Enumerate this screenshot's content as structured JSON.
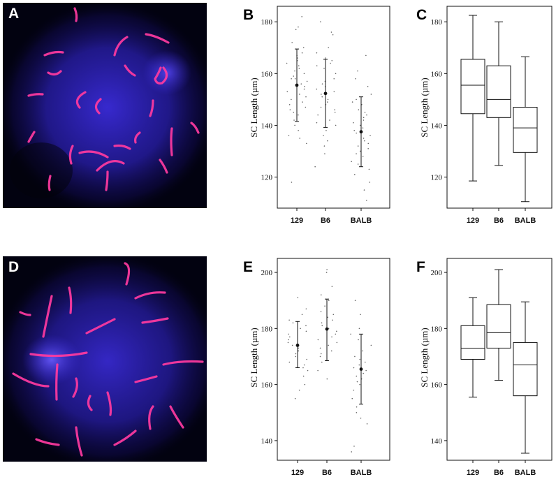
{
  "panels": {
    "A": {
      "letter": "A"
    },
    "D": {
      "letter": "D"
    }
  },
  "chart_data": [
    {
      "panel": "B",
      "type": "scatter",
      "ylabel": "SC Length (µm)",
      "categories": [
        "129",
        "B6",
        "BALB"
      ],
      "ylim": [
        108,
        186
      ],
      "yticks": [
        120,
        140,
        160,
        180
      ],
      "mean": [
        155.5,
        152.3,
        137.5
      ],
      "sd_low": [
        141.5,
        139.2,
        124.0
      ],
      "sd_high": [
        169.5,
        165.5,
        151.0
      ],
      "points": [
        [
          182,
          178,
          177,
          172,
          170,
          168,
          167,
          166,
          165,
          164,
          163,
          162,
          161,
          160,
          159,
          158,
          158,
          157,
          156,
          155,
          154,
          153,
          152,
          151,
          150,
          149,
          148,
          147,
          146,
          145,
          144,
          142,
          140,
          138,
          136,
          135,
          133,
          118
        ],
        [
          180,
          176,
          175,
          170,
          168,
          166,
          165,
          164,
          163,
          162,
          160,
          158,
          157,
          156,
          155,
          154,
          153,
          152,
          151,
          150,
          149,
          148,
          147,
          146,
          145,
          144,
          142,
          141,
          140,
          138,
          136,
          134,
          132,
          129,
          124
        ],
        [
          167,
          161,
          158,
          155,
          152,
          150,
          149,
          148,
          146,
          145,
          144,
          143,
          142,
          141,
          140,
          139,
          138,
          137,
          136,
          135,
          134,
          133,
          132,
          131,
          130,
          129,
          128,
          126,
          125,
          123,
          121,
          118,
          115,
          111
        ]
      ]
    },
    {
      "panel": "C",
      "type": "box",
      "ylabel": "SC Length (µm)",
      "categories": [
        "129",
        "B6",
        "BALB"
      ],
      "ylim": [
        108,
        186
      ],
      "yticks": [
        120,
        140,
        160,
        180
      ],
      "boxes": [
        {
          "min": 118.5,
          "q1": 144.5,
          "median": 155.5,
          "q3": 165.5,
          "max": 182.5
        },
        {
          "min": 124.5,
          "q1": 143.0,
          "median": 150.0,
          "q3": 163.0,
          "max": 180.0
        },
        {
          "min": 110.5,
          "q1": 129.5,
          "median": 139.0,
          "q3": 147.0,
          "max": 166.5
        }
      ]
    },
    {
      "panel": "E",
      "type": "scatter",
      "ylabel": "SC Length (µm)",
      "categories": [
        "129",
        "B6",
        "BALB"
      ],
      "ylim": [
        133,
        205
      ],
      "yticks": [
        140,
        160,
        180,
        200
      ],
      "mean": [
        174.0,
        179.8,
        165.5
      ],
      "sd_low": [
        166.0,
        168.5,
        153.0
      ],
      "sd_high": [
        182.5,
        190.5,
        178.0
      ],
      "points": [
        [
          191,
          187,
          185,
          183,
          182,
          181,
          180,
          179,
          178,
          177,
          176,
          175,
          174,
          173,
          172,
          171,
          170,
          169,
          168,
          167,
          166,
          165,
          163,
          160,
          158,
          155
        ],
        [
          201,
          200,
          195,
          192,
          190,
          188,
          186,
          185,
          184,
          183,
          182,
          181,
          180,
          179,
          178,
          177,
          176,
          175,
          174,
          173,
          172,
          171,
          170,
          168,
          165,
          162
        ],
        [
          190,
          185,
          180,
          178,
          176,
          174,
          172,
          170,
          169,
          168,
          167,
          166,
          165,
          164,
          163,
          162,
          161,
          160,
          158,
          155,
          152,
          150,
          148,
          146,
          138,
          136
        ]
      ]
    },
    {
      "panel": "F",
      "type": "box",
      "ylabel": "SC Length (µm)",
      "categories": [
        "129",
        "B6",
        "BALB"
      ],
      "ylim": [
        133,
        205
      ],
      "yticks": [
        140,
        160,
        180,
        200
      ],
      "boxes": [
        {
          "min": 155.5,
          "q1": 169.0,
          "median": 173.0,
          "q3": 181.0,
          "max": 191.0
        },
        {
          "min": 161.5,
          "q1": 173.0,
          "median": 178.5,
          "q3": 188.5,
          "max": 201.0
        },
        {
          "min": 135.5,
          "q1": 156.0,
          "median": 167.0,
          "q3": 175.0,
          "max": 189.5
        }
      ]
    }
  ],
  "colors": {
    "background_photo": "#020210",
    "nucleus_glow": "#3a2bd8",
    "chromosome": "#ff3aa0",
    "axis": "#111111",
    "point": "#555555"
  }
}
